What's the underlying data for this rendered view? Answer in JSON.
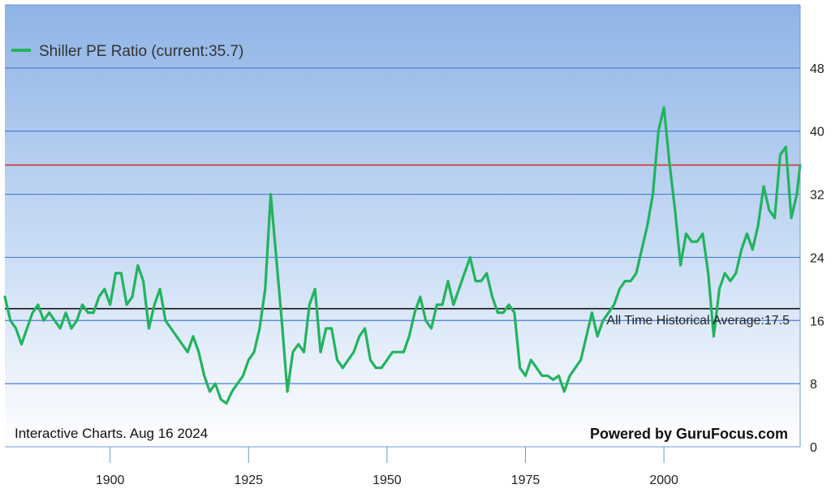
{
  "chart_data": {
    "type": "line",
    "title": "",
    "xlabel": "",
    "ylabel": "",
    "xlim": [
      1881,
      2024.6
    ],
    "ylim": [
      0,
      56
    ],
    "x_ticks": [
      1900,
      1925,
      1950,
      1975,
      2000
    ],
    "y_ticks": [
      0,
      8,
      16,
      24,
      32,
      40,
      48
    ],
    "grid": "horizontal",
    "legend_position": "top-left",
    "series": [
      {
        "name": "Shiller PE Ratio (current:35.7)",
        "color": "#22b35e",
        "points": [
          [
            1881,
            19
          ],
          [
            1882,
            16
          ],
          [
            1883,
            15
          ],
          [
            1884,
            13
          ],
          [
            1885,
            15
          ],
          [
            1886,
            17
          ],
          [
            1887,
            18
          ],
          [
            1888,
            16
          ],
          [
            1889,
            17
          ],
          [
            1890,
            16
          ],
          [
            1891,
            15
          ],
          [
            1892,
            17
          ],
          [
            1893,
            15
          ],
          [
            1894,
            16
          ],
          [
            1895,
            18
          ],
          [
            1896,
            17
          ],
          [
            1897,
            17
          ],
          [
            1898,
            19
          ],
          [
            1899,
            20
          ],
          [
            1900,
            18
          ],
          [
            1901,
            22
          ],
          [
            1902,
            22
          ],
          [
            1903,
            18
          ],
          [
            1904,
            19
          ],
          [
            1905,
            23
          ],
          [
            1906,
            21
          ],
          [
            1907,
            15
          ],
          [
            1908,
            18
          ],
          [
            1909,
            20
          ],
          [
            1910,
            16
          ],
          [
            1911,
            15
          ],
          [
            1912,
            14
          ],
          [
            1913,
            13
          ],
          [
            1914,
            12
          ],
          [
            1915,
            14
          ],
          [
            1916,
            12
          ],
          [
            1917,
            9
          ],
          [
            1918,
            7
          ],
          [
            1919,
            8
          ],
          [
            1920,
            6
          ],
          [
            1921,
            5.5
          ],
          [
            1922,
            7
          ],
          [
            1923,
            8
          ],
          [
            1924,
            9
          ],
          [
            1925,
            11
          ],
          [
            1926,
            12
          ],
          [
            1927,
            15
          ],
          [
            1928,
            20
          ],
          [
            1929,
            32
          ],
          [
            1930,
            24
          ],
          [
            1931,
            16
          ],
          [
            1932,
            7
          ],
          [
            1933,
            12
          ],
          [
            1934,
            13
          ],
          [
            1935,
            12
          ],
          [
            1936,
            18
          ],
          [
            1937,
            20
          ],
          [
            1938,
            12
          ],
          [
            1939,
            15
          ],
          [
            1940,
            15
          ],
          [
            1941,
            11
          ],
          [
            1942,
            10
          ],
          [
            1943,
            11
          ],
          [
            1944,
            12
          ],
          [
            1945,
            14
          ],
          [
            1946,
            15
          ],
          [
            1947,
            11
          ],
          [
            1948,
            10
          ],
          [
            1949,
            10
          ],
          [
            1950,
            11
          ],
          [
            1951,
            12
          ],
          [
            1952,
            12
          ],
          [
            1953,
            12
          ],
          [
            1954,
            14
          ],
          [
            1955,
            17
          ],
          [
            1956,
            19
          ],
          [
            1957,
            16
          ],
          [
            1958,
            15
          ],
          [
            1959,
            18
          ],
          [
            1960,
            18
          ],
          [
            1961,
            21
          ],
          [
            1962,
            18
          ],
          [
            1963,
            20
          ],
          [
            1964,
            22
          ],
          [
            1965,
            24
          ],
          [
            1966,
            21
          ],
          [
            1967,
            21
          ],
          [
            1968,
            22
          ],
          [
            1969,
            19
          ],
          [
            1970,
            17
          ],
          [
            1971,
            17
          ],
          [
            1972,
            18
          ],
          [
            1973,
            17
          ],
          [
            1974,
            10
          ],
          [
            1975,
            9
          ],
          [
            1976,
            11
          ],
          [
            1977,
            10
          ],
          [
            1978,
            9
          ],
          [
            1979,
            9
          ],
          [
            1980,
            8.5
          ],
          [
            1981,
            9
          ],
          [
            1982,
            7
          ],
          [
            1983,
            9
          ],
          [
            1984,
            10
          ],
          [
            1985,
            11
          ],
          [
            1986,
            14
          ],
          [
            1987,
            17
          ],
          [
            1988,
            14
          ],
          [
            1989,
            16
          ],
          [
            1990,
            17
          ],
          [
            1991,
            18
          ],
          [
            1992,
            20
          ],
          [
            1993,
            21
          ],
          [
            1994,
            21
          ],
          [
            1995,
            22
          ],
          [
            1996,
            25
          ],
          [
            1997,
            28
          ],
          [
            1998,
            32
          ],
          [
            1999,
            40
          ],
          [
            2000,
            43
          ],
          [
            2001,
            36
          ],
          [
            2002,
            30
          ],
          [
            2003,
            23
          ],
          [
            2004,
            27
          ],
          [
            2005,
            26
          ],
          [
            2006,
            26
          ],
          [
            2007,
            27
          ],
          [
            2008,
            22
          ],
          [
            2009,
            14
          ],
          [
            2010,
            20
          ],
          [
            2011,
            22
          ],
          [
            2012,
            21
          ],
          [
            2013,
            22
          ],
          [
            2014,
            25
          ],
          [
            2015,
            27
          ],
          [
            2016,
            25
          ],
          [
            2017,
            28
          ],
          [
            2018,
            33
          ],
          [
            2019,
            30
          ],
          [
            2020,
            29
          ],
          [
            2021,
            37
          ],
          [
            2022,
            38
          ],
          [
            2023,
            29
          ],
          [
            2024,
            32
          ],
          [
            2024.6,
            35.7
          ]
        ]
      }
    ],
    "reference_lines": [
      {
        "name": "current",
        "value": 35.7,
        "color": "#d32f2f"
      },
      {
        "name": "average",
        "value": 17.5,
        "color": "#111111",
        "label": "All Time Historical Average:17.5"
      }
    ],
    "legend": "Shiller PE Ratio (current:35.7)",
    "footer_left": "Interactive Charts. Aug 16 2024",
    "footer_right": "Powered by GuruFocus.com"
  }
}
